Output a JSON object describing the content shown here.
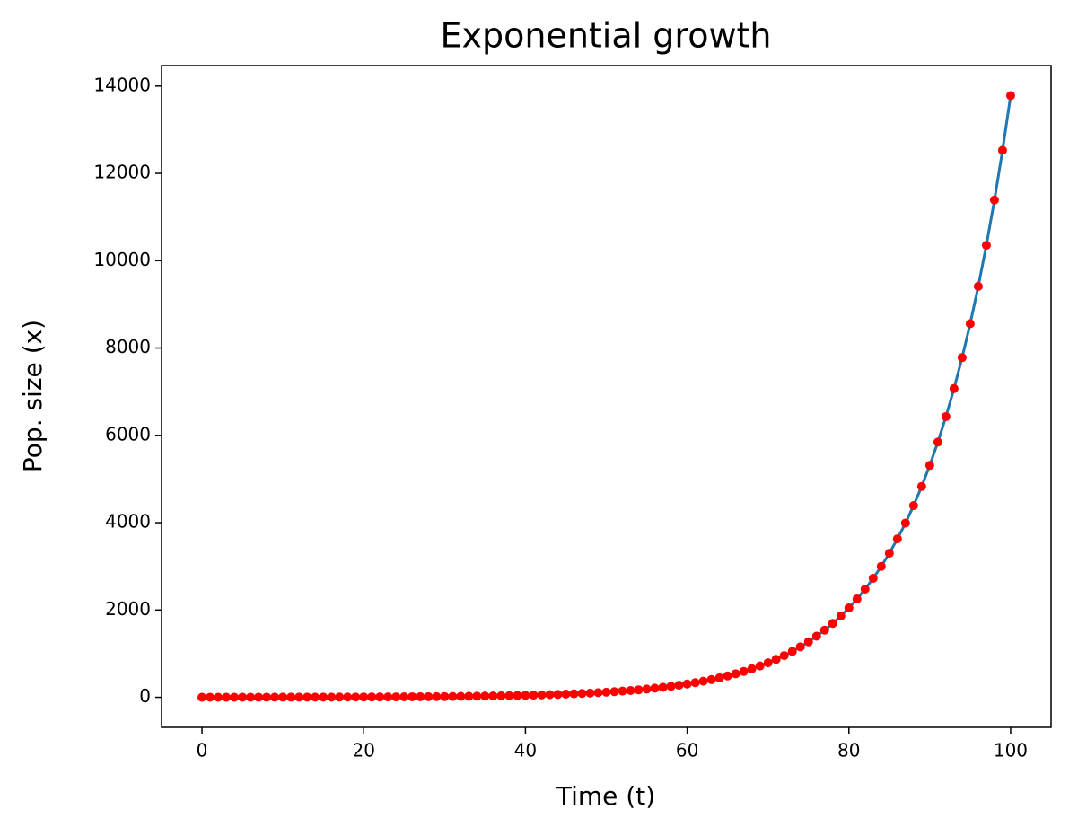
{
  "chart_data": {
    "type": "line",
    "title": "Exponential growth",
    "x_label": "Time (t)",
    "y_label": "Pop. size (x)",
    "x": [
      0,
      1,
      2,
      3,
      4,
      5,
      6,
      7,
      8,
      9,
      10,
      11,
      12,
      13,
      14,
      15,
      16,
      17,
      18,
      19,
      20,
      21,
      22,
      23,
      24,
      25,
      26,
      27,
      28,
      29,
      30,
      31,
      32,
      33,
      34,
      35,
      36,
      37,
      38,
      39,
      40,
      41,
      42,
      43,
      44,
      45,
      46,
      47,
      48,
      49,
      50,
      51,
      52,
      53,
      54,
      55,
      56,
      57,
      58,
      59,
      60,
      61,
      62,
      63,
      64,
      65,
      66,
      67,
      68,
      69,
      70,
      71,
      72,
      73,
      74,
      75,
      76,
      77,
      78,
      79,
      80,
      81,
      82,
      83,
      84,
      85,
      86,
      87,
      88,
      89,
      90,
      91,
      92,
      93,
      94,
      95,
      96,
      97,
      98,
      99,
      100
    ],
    "series": [
      {
        "color": "#1f77b4",
        "marker_color": "#ff0000",
        "values": [
          1,
          1.1,
          1.2,
          1.3,
          1.5,
          1.6,
          1.8,
          1.9,
          2.1,
          2.4,
          2.6,
          2.9,
          3.1,
          3.5,
          3.8,
          4.2,
          4.6,
          5.1,
          5.6,
          6.1,
          6.7,
          7.4,
          8.1,
          9,
          9.8,
          10.8,
          11.9,
          13.1,
          14.4,
          15.9,
          17.4,
          19.2,
          21.1,
          23.2,
          25.5,
          28.1,
          30.9,
          34,
          37.4,
          41.1,
          45.3,
          49.8,
          54.8,
          60.2,
          66.3,
          72.9,
          80.2,
          88.2,
          97,
          106.7,
          117.4,
          129.1,
          142,
          156.2,
          171.9,
          189.1,
          208,
          228.8,
          251.6,
          276.8,
          304.5,
          334.9,
          368.4,
          405.3,
          445.8,
          490.4,
          539.4,
          593.3,
          652.7,
          718,
          789.7,
          868.7,
          955.6,
          1051.2,
          1156.3,
          1271.9,
          1399.1,
          1539,
          1692.9,
          1862.2,
          2048.4,
          2253.2,
          2478.6,
          2726.4,
          2999.1,
          3299,
          3628.9,
          3991.8,
          4390.9,
          4830,
          5313,
          5844.3,
          6428.8,
          7071.6,
          7778.8,
          8556.7,
          9412.3,
          10353.6,
          11388.9,
          12527.8,
          13780.6
        ]
      }
    ],
    "xlim": [
      -5,
      105
    ],
    "xticks": [
      0,
      20,
      40,
      60,
      80,
      100
    ],
    "ylim": [
      -688,
      14469
    ],
    "yticks": [
      0,
      2000,
      4000,
      6000,
      8000,
      10000,
      12000,
      14000
    ]
  }
}
